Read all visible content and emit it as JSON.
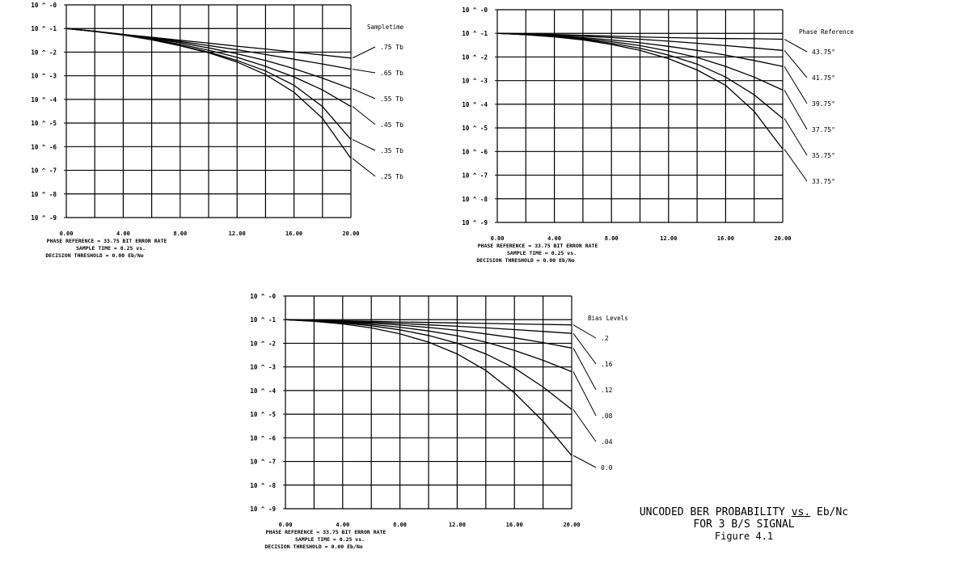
{
  "charts": [
    {
      "ytick_labels": [
        "10 ^ -0",
        "10 ^ -1",
        "10 ^ -2",
        "10 ^ -3",
        "10 ^ -4",
        "10 ^ -5",
        "10 ^ -6",
        "10 ^ -7",
        "10 ^ -8",
        "10 ^ -9"
      ],
      "xtick_labels": [
        "0.00",
        "4.00",
        "8.00",
        "12.00",
        "16.00",
        "20.00"
      ],
      "legend_title": "Sampletime",
      "footer": {
        "line1": "PHASE REFERENCE = 33.75   BIT ERROR RATE",
        "line2": "SAMPLE TIME = 0.25         vs.",
        "line3": "DECISION THRESHOLD = 0.00   Eb/No"
      },
      "series_labels": [
        ".75 Tb",
        ".65 Tb",
        ".55 Tb",
        ".45 Tb",
        ".35 Tb",
        ".25 Tb"
      ]
    },
    {
      "ytick_labels": [
        "10 ^ -0",
        "10 ^ -1",
        "10 ^ -2",
        "10 ^ -3",
        "10 ^ -4",
        "10 ^ -5",
        "10 ^ -6",
        "10 ^ -7",
        "10 ^ -8",
        "10 ^ -9"
      ],
      "xtick_labels": [
        "0.00",
        "4.00",
        "8.00",
        "12.00",
        "16.00",
        "20.00"
      ],
      "legend_title": "Phase Reference",
      "footer": {
        "line1": "PHASE REFERENCE = 33.75   BIT ERROR RATE",
        "line2": "SAMPLE TIME = 0.25         vs.",
        "line3": "DECISION THRESHOLD = 0.00   Eb/No"
      },
      "series_labels": [
        "43.75°",
        "41.75°",
        "39.75°",
        "37.75°",
        "35.75°",
        "33.75°"
      ]
    },
    {
      "ytick_labels": [
        "10 ^ -0",
        "10 ^ -1",
        "10 ^ -2",
        "10 ^ -3",
        "10 ^ -4",
        "10 ^ -5",
        "10 ^ -6",
        "10 ^ -7",
        "10 ^ -8",
        "10 ^ -9"
      ],
      "xtick_labels": [
        "0.00",
        "4.00",
        "8.00",
        "12.00",
        "16.00",
        "20.00"
      ],
      "legend_title": "Bias Levels",
      "footer": {
        "line1": "PHASE REFERENCE = 33.75   BIT ERROR RATE",
        "line2": "SAMPLE TIME = 0.25         vs.",
        "line3": "DECISION THRESHOLD = 0.00   Eb/No"
      },
      "series_labels": [
        ".2",
        ".16",
        ".12",
        ".08",
        ".04",
        "0.0"
      ]
    }
  ],
  "caption": {
    "line1_before": "UNCODED BER PROBABILITY ",
    "line1_vs": "vs.",
    "line1_after": " Eb/Nc",
    "line2": "FOR 3 B/S SIGNAL",
    "line3": "Figure 4.1"
  },
  "chart_data": [
    {
      "type": "line",
      "x": [
        0,
        2,
        4,
        6,
        8,
        10,
        12,
        14,
        16,
        18,
        20
      ],
      "xlim": [
        0,
        20
      ],
      "ylim": [
        -9,
        0
      ],
      "yscale": "log10 exponent",
      "grid": true,
      "series": [
        {
          "name": ".75 Tb",
          "values": [
            -1.0,
            -1.12,
            -1.25,
            -1.37,
            -1.5,
            -1.62,
            -1.75,
            -1.87,
            -2.0,
            -2.12,
            -2.25
          ]
        },
        {
          "name": ".65 Tb",
          "values": [
            -1.0,
            -1.12,
            -1.25,
            -1.4,
            -1.55,
            -1.72,
            -1.9,
            -2.1,
            -2.3,
            -2.5,
            -2.72
          ]
        },
        {
          "name": ".55 Tb",
          "values": [
            -1.0,
            -1.12,
            -1.25,
            -1.42,
            -1.6,
            -1.82,
            -2.07,
            -2.35,
            -2.7,
            -3.1,
            -3.55
          ]
        },
        {
          "name": ".45 Tb",
          "values": [
            -1.0,
            -1.12,
            -1.27,
            -1.45,
            -1.67,
            -1.92,
            -2.22,
            -2.6,
            -3.05,
            -3.6,
            -4.3
          ]
        },
        {
          "name": ".35 Tb",
          "values": [
            -1.0,
            -1.12,
            -1.27,
            -1.47,
            -1.72,
            -2.0,
            -2.35,
            -2.8,
            -3.4,
            -4.3,
            -5.7
          ]
        },
        {
          "name": ".25 Tb",
          "values": [
            -1.0,
            -1.13,
            -1.28,
            -1.48,
            -1.73,
            -2.03,
            -2.42,
            -2.95,
            -3.7,
            -4.8,
            -6.5
          ]
        }
      ]
    },
    {
      "type": "line",
      "x": [
        0,
        2,
        4,
        6,
        8,
        10,
        12,
        14,
        16,
        18,
        20
      ],
      "xlim": [
        0,
        20
      ],
      "ylim": [
        -9,
        0
      ],
      "yscale": "log10 exponent",
      "grid": true,
      "series": [
        {
          "name": "43.75°",
          "values": [
            -1.0,
            -1.02,
            -1.05,
            -1.08,
            -1.12,
            -1.15,
            -1.18,
            -1.2,
            -1.22,
            -1.23,
            -1.25
          ]
        },
        {
          "name": "41.75°",
          "values": [
            -1.0,
            -1.03,
            -1.07,
            -1.12,
            -1.18,
            -1.25,
            -1.33,
            -1.42,
            -1.52,
            -1.62,
            -1.72
          ]
        },
        {
          "name": "39.75°",
          "values": [
            -1.0,
            -1.04,
            -1.1,
            -1.18,
            -1.28,
            -1.4,
            -1.55,
            -1.72,
            -1.92,
            -2.15,
            -2.4
          ]
        },
        {
          "name": "37.75°",
          "values": [
            -1.0,
            -1.05,
            -1.12,
            -1.22,
            -1.35,
            -1.52,
            -1.75,
            -2.02,
            -2.4,
            -2.85,
            -3.4
          ]
        },
        {
          "name": "35.75°",
          "values": [
            -1.0,
            -1.05,
            -1.13,
            -1.25,
            -1.42,
            -1.63,
            -1.92,
            -2.3,
            -2.85,
            -3.6,
            -4.6
          ]
        },
        {
          "name": "33.75°",
          "values": [
            -1.0,
            -1.06,
            -1.15,
            -1.28,
            -1.47,
            -1.72,
            -2.07,
            -2.55,
            -3.2,
            -4.3,
            -5.9
          ]
        }
      ]
    },
    {
      "type": "line",
      "x": [
        0,
        2,
        4,
        6,
        8,
        10,
        12,
        14,
        16,
        18,
        20
      ],
      "xlim": [
        0,
        20
      ],
      "ylim": [
        -9,
        0
      ],
      "yscale": "log10 exponent",
      "grid": true,
      "series": [
        {
          "name": ".2",
          "values": [
            -1.0,
            -1.02,
            -1.05,
            -1.07,
            -1.1,
            -1.12,
            -1.14,
            -1.16,
            -1.18,
            -1.2,
            -1.22
          ]
        },
        {
          "name": ".16",
          "values": [
            -1.0,
            -1.03,
            -1.07,
            -1.11,
            -1.16,
            -1.22,
            -1.28,
            -1.35,
            -1.42,
            -1.5,
            -1.58
          ]
        },
        {
          "name": ".12",
          "values": [
            -1.0,
            -1.04,
            -1.09,
            -1.15,
            -1.23,
            -1.33,
            -1.45,
            -1.6,
            -1.77,
            -1.97,
            -2.2
          ]
        },
        {
          "name": ".08",
          "values": [
            -1.0,
            -1.05,
            -1.11,
            -1.2,
            -1.32,
            -1.48,
            -1.68,
            -1.95,
            -2.3,
            -2.72,
            -3.2
          ]
        },
        {
          "name": ".04",
          "values": [
            -1.0,
            -1.06,
            -1.14,
            -1.26,
            -1.43,
            -1.67,
            -2.0,
            -2.45,
            -3.05,
            -3.85,
            -4.8
          ]
        },
        {
          "name": "0.0",
          "values": [
            -1.0,
            -1.07,
            -1.18,
            -1.35,
            -1.6,
            -1.95,
            -2.45,
            -3.15,
            -4.1,
            -5.3,
            -6.75
          ]
        }
      ]
    }
  ]
}
